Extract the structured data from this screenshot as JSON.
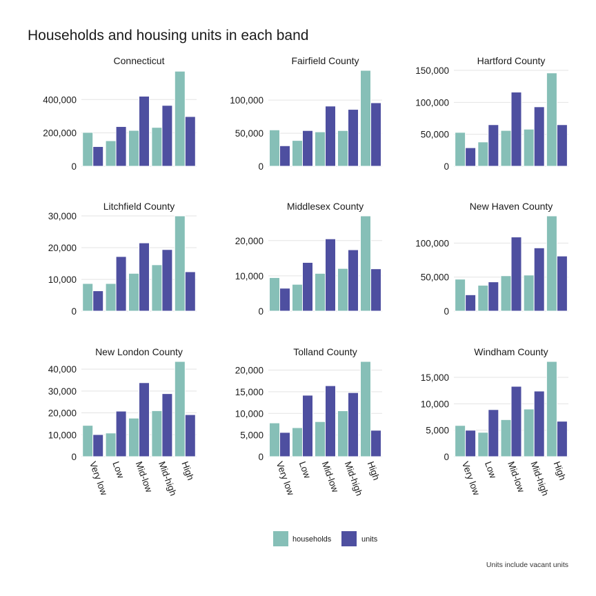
{
  "chart_data": {
    "type": "bar",
    "title": "Households and housing units in each band",
    "caption": "Units include vacant units",
    "categories": [
      "Very low",
      "Low",
      "Mid-low",
      "Mid-high",
      "High"
    ],
    "legend": {
      "position": "bottom",
      "entries": [
        {
          "name": "households",
          "color": "#86bfb7"
        },
        {
          "name": "units",
          "color": "#4e4fa0"
        }
      ]
    },
    "grid": true,
    "facets": [
      {
        "name": "Connecticut",
        "ylim": [
          0,
          575000
        ],
        "ticks": [
          0,
          200000,
          400000
        ],
        "tick_labels": [
          "0",
          "200,000",
          "400,000"
        ],
        "series": [
          {
            "name": "households",
            "values": [
              203000,
              153000,
              215000,
              233000,
              570000
            ]
          },
          {
            "name": "units",
            "values": [
              118000,
              238000,
              420000,
              365000,
              298000
            ]
          }
        ]
      },
      {
        "name": "Fairfield County",
        "ylim": [
          0,
          145000
        ],
        "ticks": [
          0,
          50000,
          100000
        ],
        "tick_labels": [
          "0",
          "50,000",
          "100,000"
        ],
        "series": [
          {
            "name": "households",
            "values": [
              55000,
              39000,
              52000,
              54000,
              145000
            ]
          },
          {
            "name": "units",
            "values": [
              31000,
              54000,
              91000,
              86000,
              96000
            ]
          }
        ]
      },
      {
        "name": "Hartford County",
        "ylim": [
          0,
          150000
        ],
        "ticks": [
          0,
          50000,
          100000,
          150000
        ],
        "tick_labels": [
          "0",
          "50,000",
          "100,000",
          "150,000"
        ],
        "series": [
          {
            "name": "households",
            "values": [
              53000,
              38000,
              56000,
              58000,
              146000
            ]
          },
          {
            "name": "units",
            "values": [
              29000,
              65000,
              116000,
              93000,
              65000
            ]
          }
        ]
      },
      {
        "name": "Litchfield County",
        "ylim": [
          0,
          30000
        ],
        "ticks": [
          0,
          10000,
          20000,
          30000
        ],
        "tick_labels": [
          "0",
          "10,000",
          "20,000",
          "30,000"
        ],
        "series": [
          {
            "name": "households",
            "values": [
              8700,
              8700,
              11900,
              14600,
              30000
            ]
          },
          {
            "name": "units",
            "values": [
              6400,
              17200,
              21500,
              19400,
              12400
            ]
          }
        ]
      },
      {
        "name": "Middlesex County",
        "ylim": [
          0,
          27000
        ],
        "ticks": [
          0,
          10000,
          20000
        ],
        "tick_labels": [
          "0",
          "10,000",
          "20,000"
        ],
        "series": [
          {
            "name": "households",
            "values": [
              9500,
              7600,
              10700,
              12100,
              27000
            ]
          },
          {
            "name": "units",
            "values": [
              6500,
              13800,
              20500,
              17400,
              12000
            ]
          }
        ]
      },
      {
        "name": "New Haven County",
        "ylim": [
          0,
          140000
        ],
        "ticks": [
          0,
          50000,
          100000
        ],
        "tick_labels": [
          "0",
          "50,000",
          "100,000"
        ],
        "series": [
          {
            "name": "households",
            "values": [
              47000,
              38000,
              52000,
              53000,
              140000
            ]
          },
          {
            "name": "units",
            "values": [
              24000,
              43000,
              109000,
              93000,
              81000
            ]
          }
        ]
      },
      {
        "name": "New London County",
        "ylim": [
          0,
          43500
        ],
        "ticks": [
          0,
          10000,
          20000,
          30000,
          40000
        ],
        "tick_labels": [
          "0",
          "10,000",
          "20,000",
          "30,000",
          "40,000"
        ],
        "series": [
          {
            "name": "households",
            "values": [
              14300,
              10800,
              17600,
              21000,
              43500
            ]
          },
          {
            "name": "units",
            "values": [
              10100,
              20800,
              33800,
              28800,
              19200
            ]
          }
        ]
      },
      {
        "name": "Tolland County",
        "ylim": [
          0,
          22000
        ],
        "ticks": [
          0,
          5000,
          10000,
          15000,
          20000
        ],
        "tick_labels": [
          "0",
          "5,000",
          "10,000",
          "15,000",
          "20,000"
        ],
        "series": [
          {
            "name": "households",
            "values": [
              7800,
              6700,
              8100,
              10600,
              22000
            ]
          },
          {
            "name": "units",
            "values": [
              5600,
              14200,
              16400,
              14800,
              6100
            ]
          }
        ]
      },
      {
        "name": "Windham County",
        "ylim": [
          0,
          18000
        ],
        "ticks": [
          0,
          5000,
          10000,
          15000
        ],
        "tick_labels": [
          "0",
          "5,000",
          "10,000",
          "15,000"
        ],
        "series": [
          {
            "name": "households",
            "values": [
              5900,
              4600,
              7000,
              9000,
              18000
            ]
          },
          {
            "name": "units",
            "values": [
              5000,
              8900,
              13300,
              12400,
              6700
            ]
          }
        ]
      }
    ]
  }
}
